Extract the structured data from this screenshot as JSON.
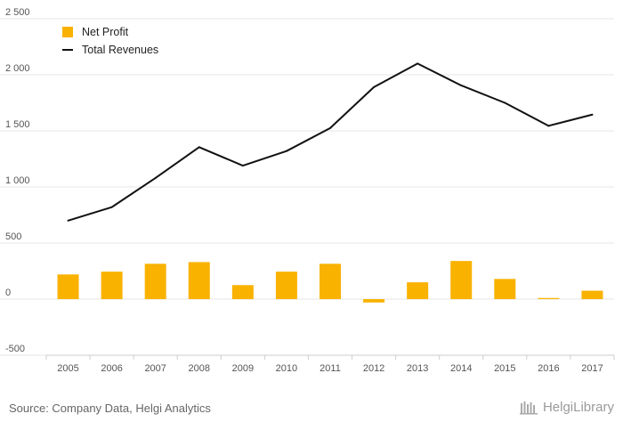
{
  "chart_data": {
    "type": "bar+line",
    "categories": [
      "2005",
      "2006",
      "2007",
      "2008",
      "2009",
      "2010",
      "2011",
      "2012",
      "2013",
      "2014",
      "2015",
      "2016",
      "2017"
    ],
    "series": [
      {
        "name": "Net Profit",
        "type": "bar",
        "color": "#f9b200",
        "values": [
          220,
          245,
          315,
          330,
          125,
          245,
          315,
          -30,
          150,
          340,
          180,
          10,
          75
        ]
      },
      {
        "name": "Total Revenues",
        "type": "line",
        "color": "#111111",
        "values": [
          700,
          820,
          1080,
          1355,
          1190,
          1320,
          1525,
          1890,
          2100,
          1905,
          1750,
          1545,
          1645
        ]
      }
    ],
    "y_ticks": [
      -500,
      0,
      500,
      1000,
      1500,
      2000,
      2500
    ],
    "y_tick_labels": [
      "-500",
      "0",
      "500",
      "1 000",
      "1 500",
      "2 000",
      "2 500"
    ],
    "ylim": [
      -500,
      2500
    ],
    "grid": true,
    "legend": "top-left"
  },
  "legend": {
    "net_profit": "Net Profit",
    "total_revenues": "Total Revenues"
  },
  "footer": {
    "source": "Source: Company Data, Helgi Analytics",
    "brand": "HelgiLibrary"
  }
}
